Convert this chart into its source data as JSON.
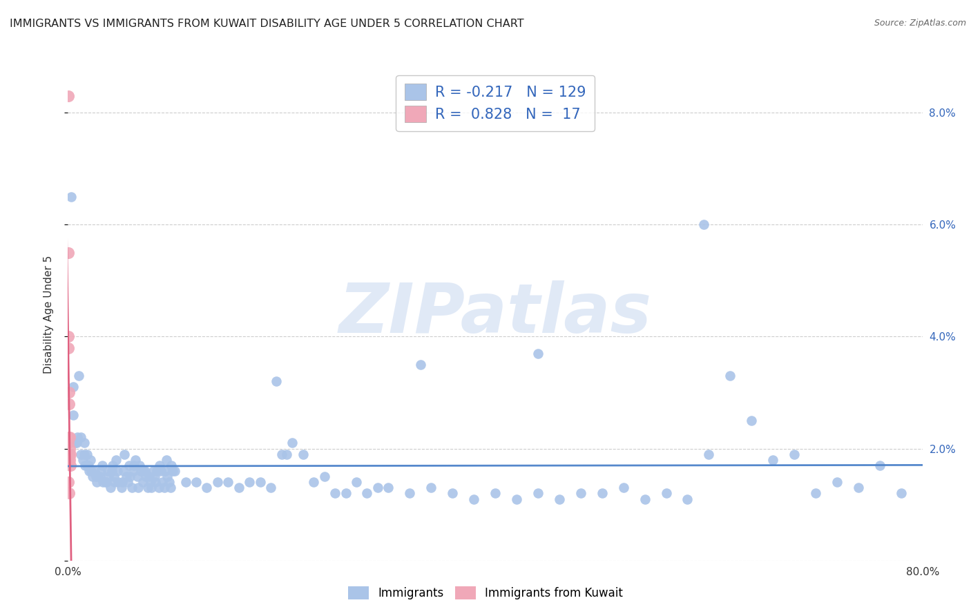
{
  "title": "IMMIGRANTS VS IMMIGRANTS FROM KUWAIT DISABILITY AGE UNDER 5 CORRELATION CHART",
  "source": "Source: ZipAtlas.com",
  "ylabel": "Disability Age Under 5",
  "xlim": [
    0.0,
    0.8
  ],
  "ylim": [
    0.0,
    0.088
  ],
  "yticks": [
    0.0,
    0.02,
    0.04,
    0.06,
    0.08
  ],
  "ytick_labels_right": [
    "",
    "2.0%",
    "4.0%",
    "6.0%",
    "8.0%"
  ],
  "xtick_labels": [
    "0.0%",
    "",
    "",
    "",
    "",
    "",
    "",
    "",
    "80.0%"
  ],
  "blue_color": "#aac4e8",
  "pink_color": "#f0a8b8",
  "blue_line_color": "#5588cc",
  "pink_line_color": "#e06080",
  "watermark_text": "ZIPatlas",
  "title_fontsize": 11.5,
  "axis_label_fontsize": 11,
  "tick_fontsize": 11,
  "legend_fontsize": 15,
  "immigrants_x": [
    0.003,
    0.005,
    0.005,
    0.007,
    0.008,
    0.009,
    0.01,
    0.012,
    0.012,
    0.014,
    0.015,
    0.015,
    0.016,
    0.018,
    0.018,
    0.019,
    0.02,
    0.021,
    0.022,
    0.023,
    0.025,
    0.026,
    0.027,
    0.028,
    0.03,
    0.031,
    0.032,
    0.033,
    0.035,
    0.036,
    0.037,
    0.038,
    0.04,
    0.041,
    0.042,
    0.043,
    0.044,
    0.045,
    0.046,
    0.047,
    0.05,
    0.051,
    0.052,
    0.053,
    0.055,
    0.056,
    0.057,
    0.058,
    0.06,
    0.061,
    0.062,
    0.063,
    0.065,
    0.066,
    0.067,
    0.068,
    0.07,
    0.071,
    0.072,
    0.073,
    0.075,
    0.076,
    0.077,
    0.078,
    0.08,
    0.081,
    0.082,
    0.083,
    0.085,
    0.086,
    0.087,
    0.088,
    0.09,
    0.091,
    0.092,
    0.093,
    0.095,
    0.096,
    0.097,
    0.098,
    0.1,
    0.11,
    0.12,
    0.13,
    0.14,
    0.15,
    0.16,
    0.17,
    0.18,
    0.19,
    0.2,
    0.21,
    0.22,
    0.23,
    0.24,
    0.25,
    0.26,
    0.27,
    0.28,
    0.29,
    0.3,
    0.32,
    0.34,
    0.36,
    0.38,
    0.4,
    0.42,
    0.44,
    0.46,
    0.48,
    0.5,
    0.52,
    0.54,
    0.56,
    0.58,
    0.6,
    0.62,
    0.64,
    0.66,
    0.68,
    0.7,
    0.72,
    0.74,
    0.76,
    0.78,
    0.595,
    0.44,
    0.33,
    0.195,
    0.205
  ],
  "immigrants_y": [
    0.065,
    0.031,
    0.026,
    0.021,
    0.021,
    0.022,
    0.033,
    0.022,
    0.019,
    0.018,
    0.021,
    0.019,
    0.017,
    0.019,
    0.017,
    0.017,
    0.016,
    0.018,
    0.016,
    0.015,
    0.016,
    0.015,
    0.014,
    0.015,
    0.015,
    0.016,
    0.017,
    0.014,
    0.014,
    0.014,
    0.016,
    0.015,
    0.013,
    0.016,
    0.017,
    0.015,
    0.014,
    0.018,
    0.016,
    0.014,
    0.013,
    0.014,
    0.016,
    0.019,
    0.015,
    0.014,
    0.017,
    0.015,
    0.013,
    0.016,
    0.017,
    0.018,
    0.015,
    0.013,
    0.017,
    0.016,
    0.014,
    0.016,
    0.016,
    0.015,
    0.013,
    0.015,
    0.014,
    0.013,
    0.016,
    0.015,
    0.014,
    0.016,
    0.013,
    0.017,
    0.016,
    0.014,
    0.013,
    0.016,
    0.018,
    0.015,
    0.014,
    0.013,
    0.017,
    0.016,
    0.016,
    0.014,
    0.014,
    0.013,
    0.014,
    0.014,
    0.013,
    0.014,
    0.014,
    0.013,
    0.019,
    0.021,
    0.019,
    0.014,
    0.015,
    0.012,
    0.012,
    0.014,
    0.012,
    0.013,
    0.013,
    0.012,
    0.013,
    0.012,
    0.011,
    0.012,
    0.011,
    0.012,
    0.011,
    0.012,
    0.012,
    0.013,
    0.011,
    0.012,
    0.011,
    0.019,
    0.033,
    0.025,
    0.018,
    0.019,
    0.012,
    0.014,
    0.013,
    0.017,
    0.012,
    0.06,
    0.037,
    0.035,
    0.032,
    0.019
  ],
  "kuwait_x": [
    0.0005,
    0.0005,
    0.0005,
    0.0005,
    0.0005,
    0.0005,
    0.0005,
    0.0005,
    0.001,
    0.001,
    0.001,
    0.001,
    0.0015,
    0.0015,
    0.0015,
    0.002,
    0.002
  ],
  "kuwait_y": [
    0.083,
    0.055,
    0.04,
    0.038,
    0.022,
    0.021,
    0.018,
    0.014,
    0.03,
    0.028,
    0.019,
    0.012,
    0.022,
    0.02,
    0.018,
    0.019,
    0.017
  ]
}
